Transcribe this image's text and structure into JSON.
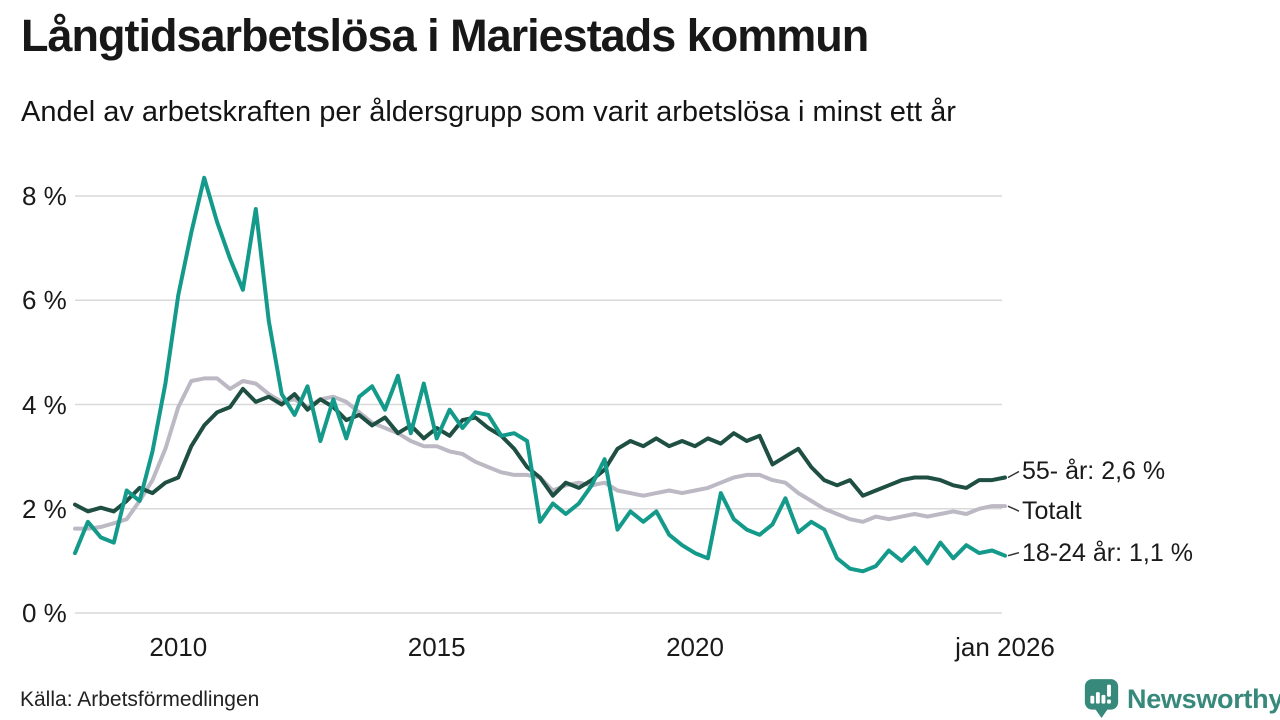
{
  "header": {
    "title": "Långtidsarbetslösa i Mariestads kommun",
    "subtitle": "Andel av arbetskraften per åldersgrupp som varit arbetslösa i minst ett år"
  },
  "footer": {
    "source": "Källa: Arbetsförmedlingen",
    "brand": "Newsworthy"
  },
  "colors": {
    "teal_series": "#149a8a",
    "dark_green_series": "#1f4f42",
    "gray_series": "#bcb8c4",
    "gridline": "#d9d9d9",
    "connector": "#333333",
    "text": "#1a1a1a",
    "logo_teal": "#37897b"
  },
  "chart_data": {
    "type": "line",
    "title": "Långtidsarbetslösa i Mariestads kommun",
    "subtitle": "Andel av arbetskraften per åldersgrupp som varit arbetslösa i minst ett år",
    "source": "Källa: Arbetsförmedlingen",
    "unit": "%",
    "x_start": 2008.0,
    "x_step_years": 0.25,
    "x_end": 2026.0,
    "ylim": [
      0,
      8.6
    ],
    "grid": "horizontal",
    "legend_position": "end-of-line-labels",
    "yticks": [
      {
        "value": 8,
        "label": "8 %"
      },
      {
        "value": 6,
        "label": "6 %"
      },
      {
        "value": 4,
        "label": "4 %"
      },
      {
        "value": 2,
        "label": "2 %"
      },
      {
        "value": 0,
        "label": "0 %"
      }
    ],
    "xticks": [
      {
        "year": 2010,
        "label": "2010"
      },
      {
        "year": 2015,
        "label": "2015"
      },
      {
        "year": 2020,
        "label": "2020"
      },
      {
        "year": 2026,
        "label": "jan 2026"
      }
    ],
    "series": [
      {
        "id": "totalt",
        "name": "Totalt",
        "end_label": "Totalt",
        "color": "#bcb8c4",
        "values": [
          1.62,
          1.62,
          1.65,
          1.72,
          1.8,
          2.15,
          2.55,
          3.15,
          3.95,
          4.45,
          4.5,
          4.5,
          4.3,
          4.45,
          4.4,
          4.2,
          4.05,
          4.1,
          3.95,
          4.1,
          4.15,
          4.05,
          3.85,
          3.65,
          3.55,
          3.45,
          3.3,
          3.2,
          3.2,
          3.1,
          3.05,
          2.9,
          2.8,
          2.7,
          2.65,
          2.65,
          2.6,
          2.35,
          2.45,
          2.5,
          2.45,
          2.5,
          2.35,
          2.3,
          2.25,
          2.3,
          2.35,
          2.3,
          2.35,
          2.4,
          2.5,
          2.6,
          2.65,
          2.65,
          2.55,
          2.5,
          2.3,
          2.15,
          2.0,
          1.9,
          1.8,
          1.75,
          1.85,
          1.8,
          1.85,
          1.9,
          1.85,
          1.9,
          1.95,
          1.9,
          2.0,
          2.05,
          2.05
        ]
      },
      {
        "id": "55plus",
        "name": "55- år",
        "end_label": "55- år: 2,6 %",
        "end_value_text": "2,6 %",
        "color": "#1f4f42",
        "values": [
          2.08,
          1.95,
          2.02,
          1.95,
          2.15,
          2.4,
          2.3,
          2.5,
          2.6,
          3.2,
          3.6,
          3.85,
          3.95,
          4.3,
          4.05,
          4.15,
          4.0,
          4.2,
          3.9,
          4.1,
          3.95,
          3.7,
          3.8,
          3.6,
          3.75,
          3.45,
          3.6,
          3.35,
          3.55,
          3.4,
          3.7,
          3.75,
          3.55,
          3.4,
          3.15,
          2.8,
          2.6,
          2.25,
          2.5,
          2.4,
          2.55,
          2.75,
          3.15,
          3.3,
          3.2,
          3.35,
          3.2,
          3.3,
          3.2,
          3.35,
          3.25,
          3.45,
          3.3,
          3.4,
          2.85,
          3.0,
          3.15,
          2.8,
          2.55,
          2.45,
          2.55,
          2.25,
          2.35,
          2.45,
          2.55,
          2.6,
          2.6,
          2.55,
          2.45,
          2.4,
          2.55,
          2.55,
          2.6
        ]
      },
      {
        "id": "18-24",
        "name": "18-24 år",
        "end_label": "18-24 år: 1,1 %",
        "end_value_text": "1,1 %",
        "color": "#149a8a",
        "values": [
          1.15,
          1.75,
          1.45,
          1.35,
          2.35,
          2.15,
          3.1,
          4.4,
          6.1,
          7.3,
          8.35,
          7.5,
          6.8,
          6.2,
          7.75,
          5.6,
          4.2,
          3.8,
          4.35,
          3.3,
          4.1,
          3.35,
          4.15,
          4.35,
          3.9,
          4.55,
          3.45,
          4.4,
          3.35,
          3.9,
          3.55,
          3.85,
          3.8,
          3.4,
          3.45,
          3.3,
          1.75,
          2.1,
          1.9,
          2.1,
          2.45,
          2.95,
          1.6,
          1.95,
          1.75,
          1.95,
          1.5,
          1.3,
          1.15,
          1.05,
          2.3,
          1.8,
          1.6,
          1.5,
          1.7,
          2.2,
          1.55,
          1.75,
          1.6,
          1.05,
          0.85,
          0.8,
          0.9,
          1.2,
          1.0,
          1.25,
          0.95,
          1.35,
          1.05,
          1.3,
          1.15,
          1.2,
          1.1
        ]
      }
    ]
  }
}
